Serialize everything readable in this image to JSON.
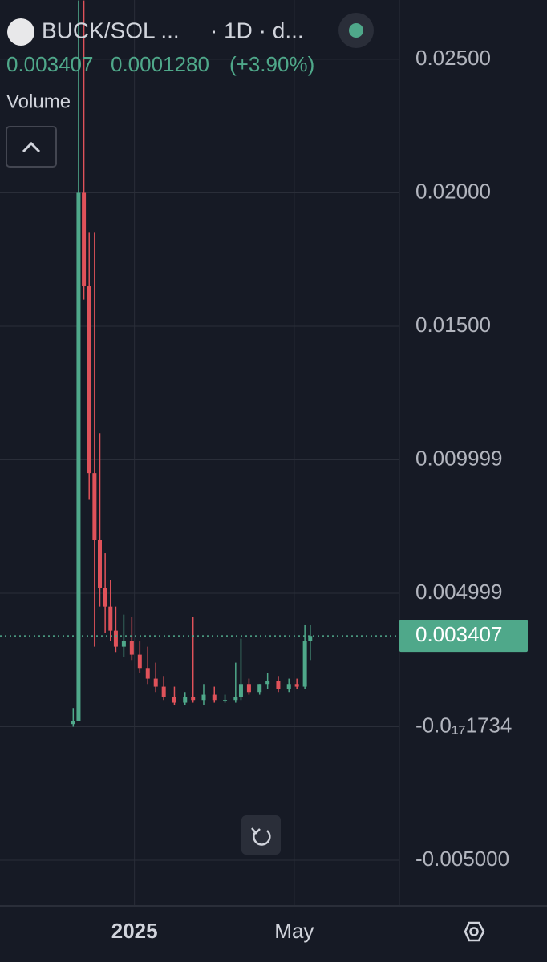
{
  "chart_data": {
    "type": "candlestick",
    "symbol": "BUCK/SOL ...",
    "interval": "· 1D · d...",
    "last_price": 0.003407,
    "change": {
      "value": 0.000128,
      "label": "0.0001280"
    },
    "change_percent": {
      "value": 3.9,
      "label": "(+3.90%)"
    },
    "volume_label": "Volume",
    "x": [
      -46,
      -42,
      -38,
      -34,
      -30,
      -26,
      -22,
      -18,
      -14,
      -8,
      -2,
      4,
      10,
      16,
      22,
      30,
      38,
      44,
      52,
      60,
      68,
      76,
      80,
      86,
      94,
      100,
      108,
      116,
      122,
      128,
      132
    ],
    "open": [
      0.0001,
      0.0002,
      0.02,
      0.0165,
      0.0095,
      0.007,
      0.0052,
      0.0045,
      0.0036,
      0.003,
      0.0032,
      0.0027,
      0.0022,
      0.0018,
      0.0015,
      0.0011,
      0.0009,
      0.0011,
      0.001,
      0.0012,
      0.001,
      0.001,
      0.0011,
      0.0016,
      0.0013,
      0.0016,
      0.0017,
      0.0014,
      0.0016,
      0.0015,
      0.0032
    ],
    "high": [
      0.0007,
      0.0272,
      0.0272,
      0.0185,
      0.0185,
      0.011,
      0.0065,
      0.0055,
      0.0045,
      0.0042,
      0.0041,
      0.0032,
      0.003,
      0.0024,
      0.0019,
      0.0015,
      0.0013,
      0.0041,
      0.0016,
      0.0015,
      0.0012,
      0.0024,
      0.0033,
      0.0018,
      0.0016,
      0.002,
      0.0019,
      0.0018,
      0.0018,
      0.0038,
      0.0038
    ],
    "low": [
      0.0,
      0.0002,
      0.016,
      0.0085,
      0.003,
      0.0045,
      0.0035,
      0.0032,
      0.0028,
      0.0026,
      0.0025,
      0.002,
      0.0016,
      0.0013,
      0.001,
      0.0008,
      0.0008,
      0.0009,
      0.0008,
      0.0009,
      0.0009,
      0.0009,
      0.001,
      0.0012,
      0.0012,
      0.0014,
      0.0013,
      0.0013,
      0.0014,
      0.0014,
      0.0025
    ],
    "close": [
      0.0002,
      0.02,
      0.0165,
      0.0095,
      0.007,
      0.0052,
      0.0045,
      0.0036,
      0.003,
      0.0032,
      0.0027,
      0.0022,
      0.0018,
      0.0015,
      0.0011,
      0.0009,
      0.0011,
      0.001,
      0.0012,
      0.001,
      0.001,
      0.0011,
      0.0016,
      0.0013,
      0.0016,
      0.0017,
      0.0014,
      0.0016,
      0.0015,
      0.0032,
      0.0034
    ],
    "up_color": "#4fa88a",
    "down_color": "#e0525a",
    "xlim": [
      -101,
      199
    ],
    "xticks": [
      {
        "value": 0,
        "label": "2025"
      },
      {
        "value": 120,
        "label": "May"
      }
    ],
    "ylim": [
      -0.00671,
      0.02722
    ],
    "yticks": [
      {
        "value": 0.025,
        "label": "0.02500"
      },
      {
        "value": 0.02,
        "label": "0.02000"
      },
      {
        "value": 0.015,
        "label": "0.01500"
      },
      {
        "value": 0.009999,
        "label": "0.009999"
      },
      {
        "value": 0.004999,
        "label": "0.004999"
      },
      {
        "value": -1.734e-18,
        "label": "-0.0₁₇1734"
      },
      {
        "value": -0.005,
        "label": "-0.005000"
      }
    ],
    "grid": true
  }
}
